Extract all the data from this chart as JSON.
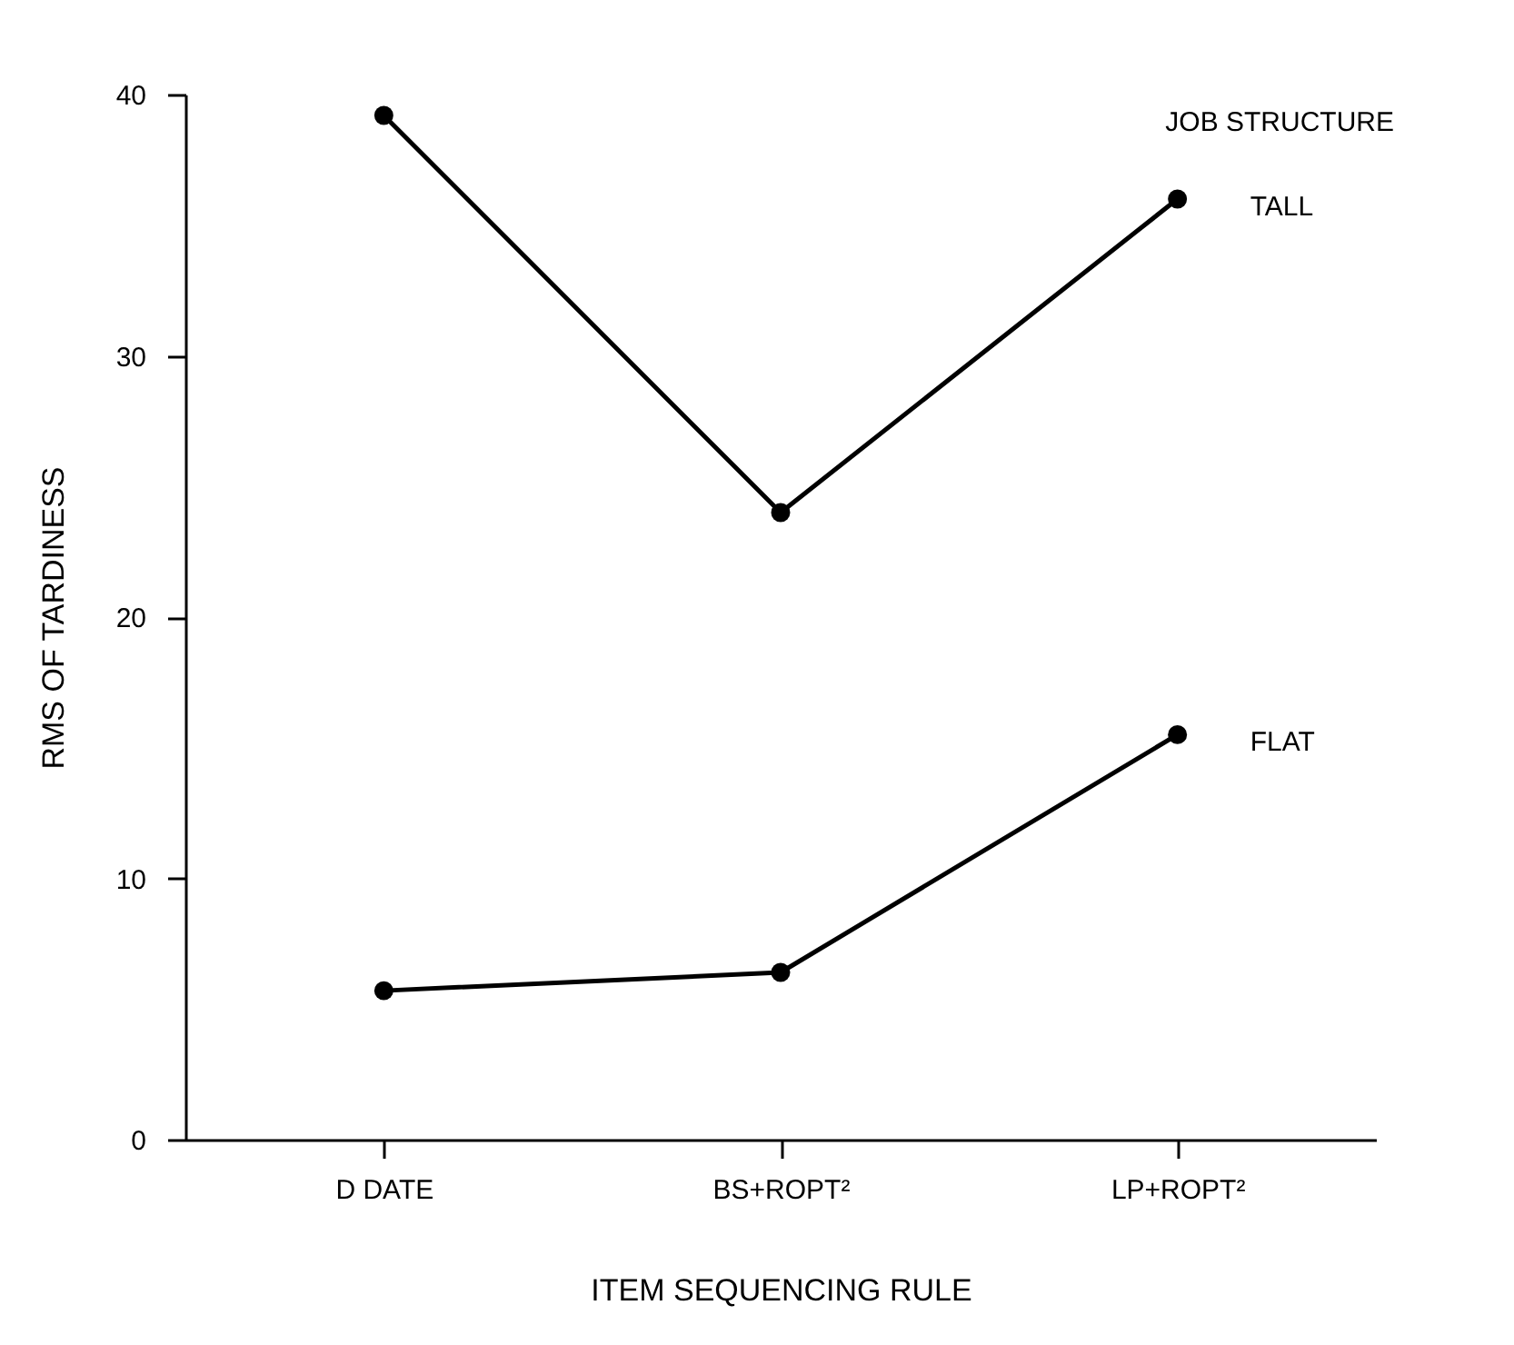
{
  "chart_data": {
    "type": "line",
    "xlabel": "ITEM SEQUENCING RULE",
    "ylabel": "RMS OF TARDINESS",
    "legend_title": "JOB STRUCTURE",
    "categories": [
      "D DATE",
      "BS+ROPT²",
      "LP+ROPT²"
    ],
    "series": [
      {
        "name": "TALL",
        "color": "#000000",
        "values": [
          39.2,
          24.0,
          36.0
        ]
      },
      {
        "name": "FLAT",
        "color": "#000000",
        "values": [
          5.7,
          6.4,
          15.5
        ]
      }
    ],
    "ylim": [
      0,
      40
    ],
    "yticks": [
      0,
      10,
      20,
      30,
      40
    ],
    "marker": "circle",
    "line_style": "solid"
  }
}
